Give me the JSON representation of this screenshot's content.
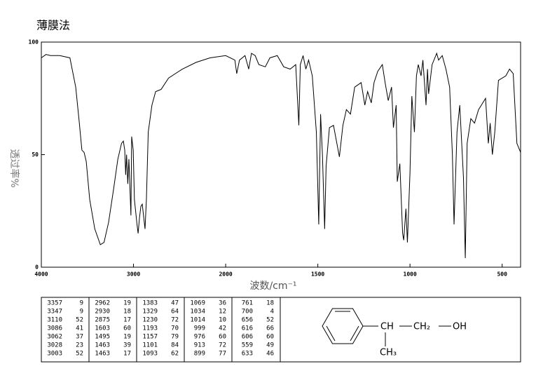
{
  "chart_data": {
    "type": "line",
    "title": "薄膜法",
    "x_label": "波数/cm⁻¹",
    "y_label": "透过率%",
    "color": "#000000",
    "xlim": [
      4000,
      400
    ],
    "xticks": [
      4000,
      3000,
      2000,
      1500,
      1000,
      500
    ],
    "ylim": [
      0,
      100
    ],
    "yticks": [
      0,
      50,
      100
    ],
    "x": [
      4000,
      3950,
      3900,
      3800,
      3690,
      3627,
      3590,
      3560,
      3536,
      3513,
      3475,
      3420,
      3360,
      3320,
      3270,
      3215,
      3170,
      3130,
      3110,
      3095,
      3085,
      3075,
      3062,
      3050,
      3028,
      3020,
      3003,
      2990,
      2962,
      2950,
      2935,
      2920,
      2905,
      2875,
      2860,
      2840,
      2800,
      2760,
      2700,
      2620,
      2470,
      2320,
      2170,
      2000,
      1950,
      1940,
      1925,
      1895,
      1875,
      1860,
      1840,
      1820,
      1785,
      1760,
      1720,
      1685,
      1650,
      1620,
      1603,
      1595,
      1580,
      1565,
      1550,
      1530,
      1508,
      1495,
      1485,
      1475,
      1463,
      1455,
      1437,
      1415,
      1383,
      1364,
      1345,
      1323,
      1300,
      1265,
      1245,
      1230,
      1210,
      1195,
      1175,
      1150,
      1135,
      1118,
      1100,
      1090,
      1075,
      1069,
      1055,
      1040,
      1034,
      1022,
      1014,
      1000,
      990,
      976,
      965,
      955,
      940,
      930,
      913,
      905,
      899,
      880,
      855,
      845,
      825,
      805,
      785,
      770,
      761,
      745,
      730,
      710,
      700,
      690,
      670,
      650,
      628,
      605,
      590,
      575,
      565,
      553,
      540,
      520,
      480,
      460,
      440,
      420,
      400
    ],
    "values": [
      93,
      94.5,
      94,
      94,
      93,
      80,
      65,
      52,
      51,
      47,
      30,
      17,
      10,
      11,
      20,
      35,
      48,
      55,
      56,
      52,
      41,
      50,
      37,
      48,
      23,
      58,
      52,
      30,
      19,
      15,
      22,
      27,
      28,
      17,
      30,
      60,
      72,
      78,
      79,
      84,
      88,
      91,
      93,
      94,
      92,
      86,
      92,
      94,
      88,
      95,
      94,
      90,
      89,
      93,
      94,
      89,
      88,
      90,
      63,
      90,
      94,
      88,
      92,
      85,
      60,
      19,
      68,
      50,
      17,
      45,
      62,
      63,
      49,
      63,
      70,
      68,
      80,
      82,
      72,
      78,
      73,
      82,
      87,
      90,
      82,
      74,
      80,
      62,
      72,
      38,
      46,
      15,
      12,
      26,
      11,
      42,
      76,
      60,
      85,
      90,
      85,
      92,
      72,
      88,
      77,
      90,
      95,
      92,
      94,
      88,
      80,
      50,
      19,
      60,
      72,
      40,
      4,
      55,
      66,
      64,
      70,
      73,
      75,
      55,
      64,
      50,
      60,
      83,
      85,
      88,
      86,
      55,
      51
    ]
  },
  "peak_table": {
    "columns": [
      [
        [
          3357,
          9
        ],
        [
          3347,
          9
        ],
        [
          3110,
          52
        ],
        [
          3086,
          41
        ],
        [
          3062,
          37
        ],
        [
          3028,
          23
        ],
        [
          3003,
          52
        ]
      ],
      [
        [
          2962,
          19
        ],
        [
          2930,
          18
        ],
        [
          2875,
          17
        ],
        [
          1603,
          60
        ],
        [
          1495,
          19
        ],
        [
          1463,
          39
        ],
        [
          1463,
          17
        ]
      ],
      [
        [
          1383,
          47
        ],
        [
          1329,
          64
        ],
        [
          1230,
          72
        ],
        [
          1193,
          70
        ],
        [
          1157,
          79
        ],
        [
          1101,
          84
        ],
        [
          1093,
          62
        ]
      ],
      [
        [
          1069,
          36
        ],
        [
          1034,
          12
        ],
        [
          1014,
          10
        ],
        [
          999,
          42
        ],
        [
          976,
          60
        ],
        [
          913,
          72
        ],
        [
          899,
          77
        ]
      ],
      [
        [
          761,
          18
        ],
        [
          700,
          4
        ],
        [
          656,
          52
        ],
        [
          616,
          66
        ],
        [
          606,
          60
        ],
        [
          559,
          49
        ],
        [
          633,
          46
        ]
      ]
    ]
  },
  "structure": {
    "labels": [
      "CH",
      "CH₂",
      "OH",
      "CH₃"
    ]
  }
}
